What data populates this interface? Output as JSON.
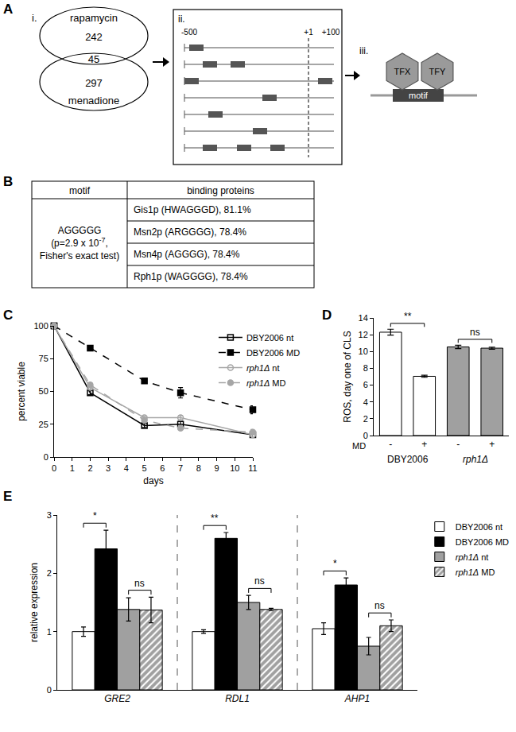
{
  "panel_labels": [
    "A",
    "B",
    "C",
    "D",
    "E"
  ],
  "diagram": {
    "steps": [
      "i.",
      "ii.",
      "iii."
    ],
    "venn": {
      "top_label": "rapamycin",
      "bottom_label": "menadione",
      "top_only": 242,
      "overlap": 45,
      "bottom_only": 297
    },
    "promoter_axis": [
      "-500",
      "+1",
      "+100"
    ],
    "factors": [
      "TFX",
      "TFY"
    ],
    "motif_label": "motif"
  },
  "table": {
    "header": [
      "motif",
      "binding proteins"
    ],
    "motif_lines": [
      {
        "text": "AGGGGG"
      },
      {
        "text": "(p=2.9 x 10",
        "sup": "-7",
        "after": ","
      },
      {
        "text": "Fisher's exact test)"
      }
    ],
    "rows": [
      "Gis1p (HWAGGGD), 81.1%",
      "Msn2p (ARGGGG), 78.4%",
      "Msn4p (AGGGG), 78.4%",
      "Rph1p (WAGGGG), 78.4%"
    ]
  },
  "chart_data": [
    {
      "type": "line",
      "x": [
        0,
        2,
        5,
        7,
        11
      ],
      "xlim": [
        0,
        11
      ],
      "xticks": [
        0,
        1,
        2,
        3,
        4,
        5,
        6,
        7,
        8,
        9,
        10,
        11
      ],
      "ylim": [
        0,
        100
      ],
      "yticks": [
        0,
        25,
        50,
        75,
        100
      ],
      "x_label": "days",
      "y_label": "percent viable",
      "grid": false,
      "legend": "upper right",
      "series": [
        {
          "name": "DBY2006 nt",
          "color": "#000000",
          "marker": "square-open",
          "line_style": "solid",
          "values": [
            100,
            49,
            24,
            25,
            17
          ],
          "errors": [
            0,
            1.5,
            1.5,
            2,
            2
          ]
        },
        {
          "name": "DBY2006 MD",
          "color": "#000000",
          "marker": "square",
          "line_style": "dashed",
          "values": [
            100,
            83,
            58,
            49,
            36
          ],
          "errors": [
            0,
            1.5,
            1.5,
            4,
            3
          ]
        },
        {
          "name": "rph1Δ nt",
          "color": "#a6a6a6",
          "marker": "circle-open",
          "line_style": "solid",
          "values": [
            100,
            53,
            30,
            30,
            17
          ],
          "errors": [
            0,
            1.5,
            1,
            1.5,
            1.5
          ]
        },
        {
          "name": "rph1Δ MD",
          "color": "#a6a6a6",
          "marker": "circle",
          "line_style": "dashed",
          "values": [
            100,
            55,
            28,
            22,
            19
          ],
          "errors": [
            0,
            1.5,
            1,
            1,
            2
          ]
        }
      ]
    },
    {
      "type": "bar",
      "categories": [
        "-",
        "+",
        "-",
        "+"
      ],
      "groups": [
        "DBY2006",
        "rph1Δ"
      ],
      "category_label": "MD",
      "values": [
        12.3,
        7.05,
        10.55,
        10.4
      ],
      "errors": [
        0.35,
        0.12,
        0.2,
        0.12
      ],
      "colors": [
        "#ffffff",
        "#ffffff",
        "#a0a0a0",
        "#a0a0a0"
      ],
      "ylim": [
        0,
        14
      ],
      "yticks": [
        0,
        2,
        4,
        6,
        8,
        10,
        12,
        14
      ],
      "y_label": "ROS, day one of CLS",
      "grid": false,
      "significance": [
        {
          "bars": [
            0,
            1
          ],
          "text": "**"
        },
        {
          "bars": [
            2,
            3
          ],
          "text": "ns"
        }
      ]
    },
    {
      "type": "bar",
      "categories": [
        "GRE2",
        "RDL1",
        "AHP1"
      ],
      "ylim": [
        0,
        3
      ],
      "yticks": [
        0,
        1,
        2,
        3
      ],
      "y_label": "relative expression",
      "grid": false,
      "legend": "upper right",
      "series": [
        {
          "name": "DBY2006 nt",
          "color": "#ffffff",
          "marker": "solid",
          "values": [
            1.0,
            1.0,
            1.05
          ],
          "errors": [
            0.08,
            0.03,
            0.1
          ]
        },
        {
          "name": "DBY2006 MD",
          "color": "#000000",
          "marker": "solid",
          "values": [
            2.42,
            2.6,
            1.8
          ],
          "errors": [
            0.32,
            0.1,
            0.12
          ]
        },
        {
          "name": "rph1Δ nt",
          "color": "#a0a0a0",
          "marker": "solid",
          "values": [
            1.38,
            1.5,
            0.75
          ],
          "errors": [
            0.2,
            0.12,
            0.15
          ]
        },
        {
          "name": "rph1Δ MD",
          "color": "#a0a0a0",
          "marker": "hatched",
          "values": [
            1.37,
            1.38,
            1.1
          ],
          "errors": [
            0.22,
            0.02,
            0.1
          ]
        }
      ],
      "significance": [
        {
          "category": 0,
          "series": [
            0,
            1
          ],
          "text": "*"
        },
        {
          "category": 0,
          "series": [
            2,
            3
          ],
          "text": "ns"
        },
        {
          "category": 1,
          "series": [
            0,
            1
          ],
          "text": "**"
        },
        {
          "category": 1,
          "series": [
            2,
            3
          ],
          "text": "ns"
        },
        {
          "category": 2,
          "series": [
            0,
            1
          ],
          "text": "*"
        },
        {
          "category": 2,
          "series": [
            2,
            3
          ],
          "text": "ns"
        }
      ]
    }
  ]
}
